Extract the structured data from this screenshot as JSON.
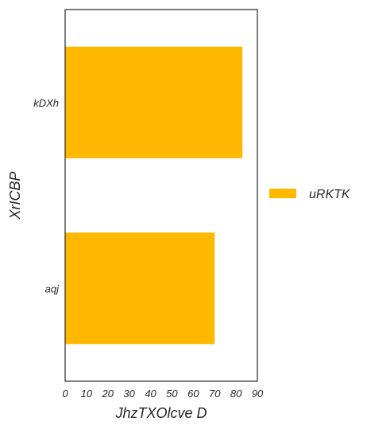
{
  "chart_data": {
    "type": "bar",
    "orientation": "horizontal",
    "categories": [
      "kDXh",
      "aqj"
    ],
    "series": [
      {
        "name": "uRKTK",
        "values": [
          83,
          70
        ],
        "color": "#FFB800"
      }
    ],
    "xlabel": "JhzTXOlcve D",
    "ylabel": "XrICBP",
    "xlim": [
      0,
      90
    ],
    "xticks": [
      0,
      10,
      20,
      30,
      40,
      50,
      60,
      70,
      80,
      90
    ],
    "grid": false,
    "legend": "right"
  }
}
